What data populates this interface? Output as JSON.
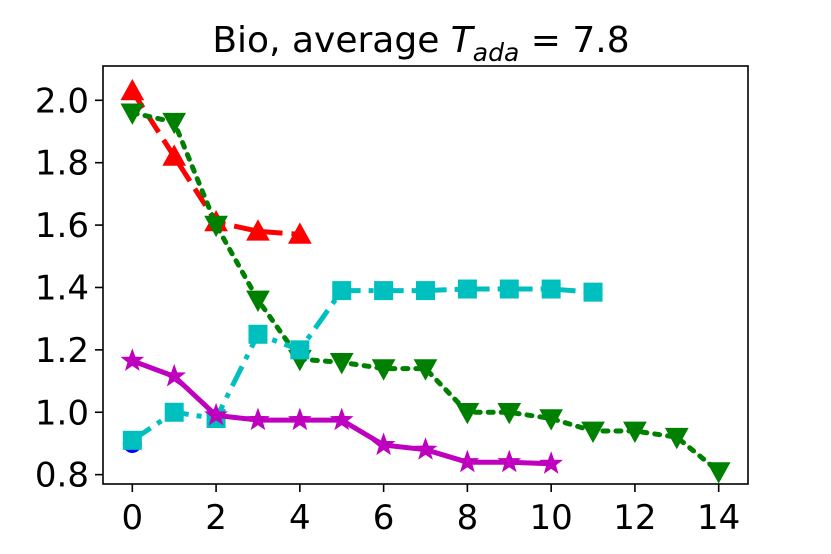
{
  "chart_data": {
    "type": "line",
    "title": {
      "prefix": "Bio, average ",
      "symbol": "T",
      "subscript": "ada",
      "suffix": " = 7.8"
    },
    "xlabel": "",
    "ylabel": "",
    "xlim": [
      -0.7,
      14.7
    ],
    "ylim": [
      0.77,
      2.11
    ],
    "grid": false,
    "legend": "none",
    "x_ticks": [
      0,
      2,
      4,
      6,
      8,
      10,
      12,
      14
    ],
    "x_tick_labels": [
      "0",
      "2",
      "4",
      "6",
      "8",
      "10",
      "12",
      "14"
    ],
    "y_ticks": [
      0.8,
      1.0,
      1.2,
      1.4,
      1.6,
      1.8,
      2.0
    ],
    "y_tick_labels": [
      "0.8",
      "1.0",
      "1.2",
      "1.4",
      "1.6",
      "1.8",
      "2.0"
    ],
    "series": [
      {
        "name": "blue-circle",
        "color": "#0000ff",
        "marker": "circle",
        "line_style": "solid",
        "x": [
          0
        ],
        "values": [
          0.9
        ]
      },
      {
        "name": "red-triangle-up",
        "color": "#ff0000",
        "marker": "triangle-up",
        "line_style": "dashed",
        "x": [
          0,
          1,
          2,
          3,
          4
        ],
        "values": [
          2.03,
          1.82,
          1.61,
          1.58,
          1.57
        ]
      },
      {
        "name": "green-triangle-down",
        "color": "#008000",
        "marker": "triangle-down",
        "line_style": "dotted",
        "x": [
          0,
          1,
          2,
          3,
          4,
          5,
          6,
          7,
          8,
          9,
          10,
          11,
          12,
          13,
          14
        ],
        "values": [
          1.96,
          1.93,
          1.6,
          1.36,
          1.17,
          1.16,
          1.14,
          1.14,
          1.0,
          1.0,
          0.98,
          0.94,
          0.94,
          0.92,
          0.81
        ]
      },
      {
        "name": "cyan-square",
        "color": "#00bfbf",
        "marker": "square",
        "line_style": "dashdot",
        "x": [
          0,
          1,
          2,
          3,
          4,
          5,
          6,
          7,
          8,
          9,
          10,
          11
        ],
        "values": [
          0.91,
          1.0,
          0.98,
          1.25,
          1.2,
          1.39,
          1.39,
          1.39,
          1.395,
          1.395,
          1.395,
          1.385
        ]
      },
      {
        "name": "magenta-star",
        "color": "#bf00bf",
        "marker": "star",
        "line_style": "solid",
        "x": [
          0,
          1,
          2,
          3,
          4,
          5,
          6,
          7,
          8,
          9,
          10
        ],
        "values": [
          1.165,
          1.115,
          0.99,
          0.975,
          0.975,
          0.975,
          0.895,
          0.88,
          0.84,
          0.84,
          0.835
        ]
      }
    ]
  }
}
